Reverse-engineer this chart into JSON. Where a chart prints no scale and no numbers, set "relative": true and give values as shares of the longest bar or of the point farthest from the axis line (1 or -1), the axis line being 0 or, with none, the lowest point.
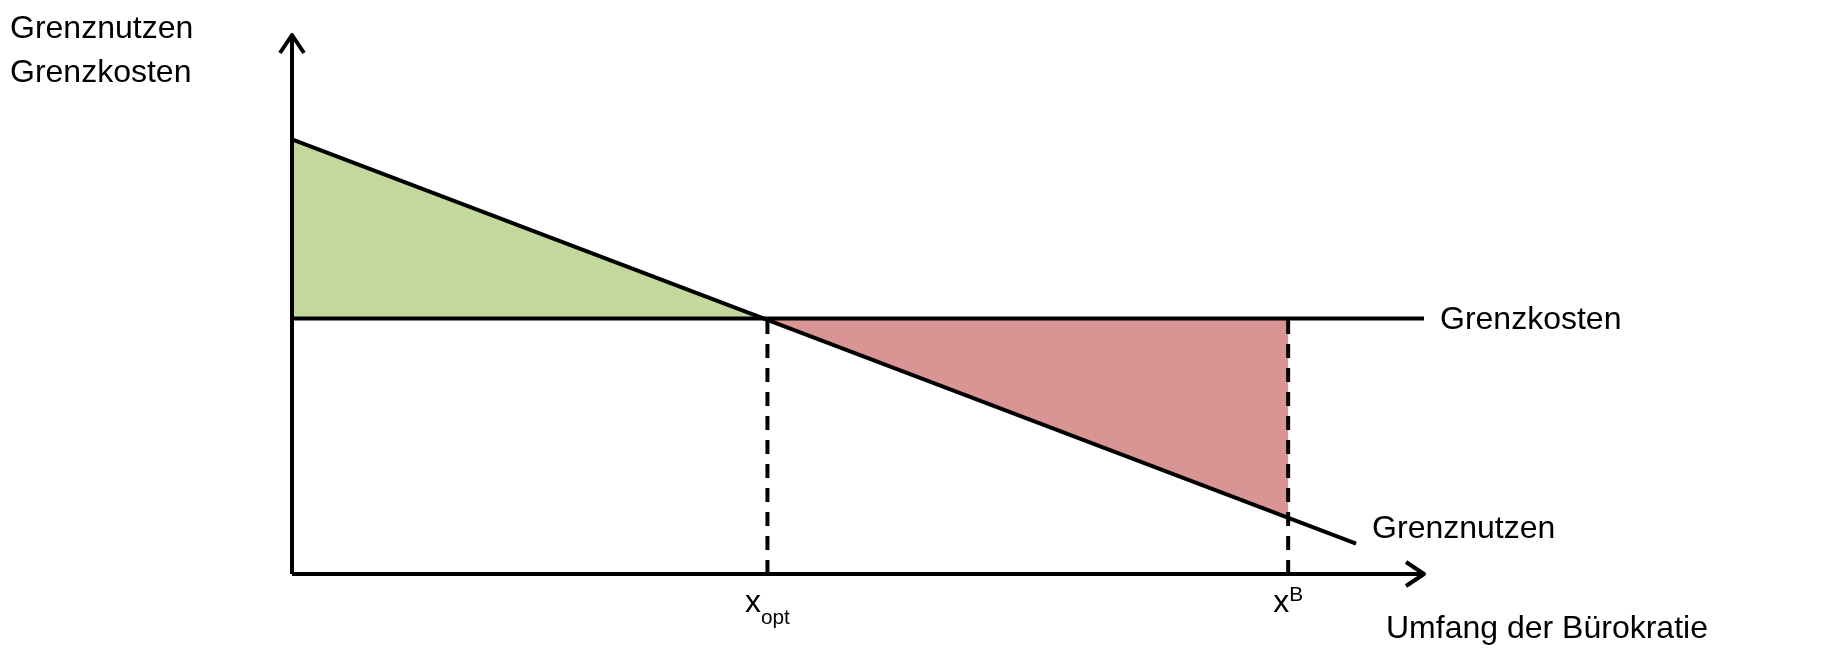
{
  "chart_data": {
    "type": "line",
    "relative": true,
    "ylabel": "Grenznutzen\nGrenzkosten",
    "xlabel": "Umfang der Bürokratie",
    "grid": false,
    "legend": false,
    "marker": "none",
    "categories": [
      null,
      null,
      null,
      null,
      null,
      null,
      null,
      null,
      null,
      null,
      null,
      null,
      null,
      null,
      null,
      null,
      null,
      null,
      null,
      null,
      null,
      "x$_{opt}$",
      null,
      null,
      null,
      null,
      null,
      null,
      null,
      null,
      null,
      null,
      null,
      null,
      null,
      null,
      null,
      null,
      null,
      null,
      null,
      null,
      null,
      null,
      "x$^{B}$",
      null,
      null,
      null,
      null,
      null,
      null
    ],
    "series": [
      {
        "name": "Grenzkosten",
        "color": "#000000",
        "values": [
          0.588,
          null,
          null,
          null,
          null,
          null,
          null,
          null,
          null,
          null,
          null,
          null,
          null,
          null,
          null,
          null,
          null,
          null,
          null,
          null,
          null,
          null,
          null,
          null,
          null,
          null,
          null,
          null,
          null,
          null,
          null,
          null,
          null,
          null,
          null,
          null,
          null,
          null,
          null,
          null,
          null,
          null,
          null,
          null,
          null,
          null,
          null,
          null,
          null,
          null,
          0.588
        ]
      },
      {
        "name": "Grenznutzen",
        "color": "#000000",
        "values": [
          1,
          null,
          null,
          null,
          null,
          null,
          null,
          null,
          null,
          null,
          null,
          null,
          null,
          null,
          null,
          null,
          null,
          null,
          null,
          null,
          null,
          null,
          null,
          null,
          null,
          null,
          null,
          null,
          null,
          null,
          null,
          null,
          null,
          null,
          null,
          null,
          null,
          null,
          null,
          null,
          null,
          null,
          null,
          null,
          null,
          null,
          null,
          0.07,
          null,
          null,
          null
        ]
      }
    ],
    "ref_lines": [
      {
        "axis": "x",
        "value": "x$_{opt}$",
        "line_style": "dashed",
        "color": "#000000"
      },
      {
        "axis": "x",
        "value": "x$^{B}$",
        "line_style": "dashed",
        "color": "#000000"
      }
    ]
  }
}
